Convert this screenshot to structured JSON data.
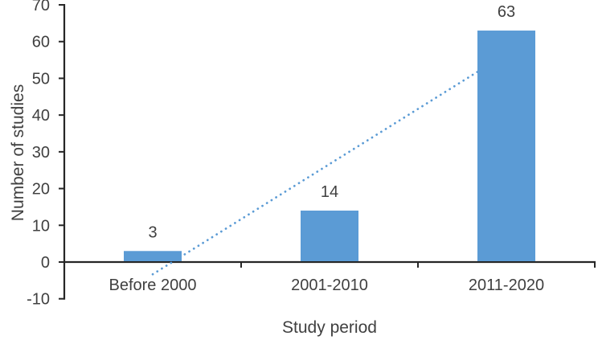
{
  "chart_data": {
    "type": "bar",
    "xlabel": "Study period",
    "ylabel": "Number of studies",
    "categories": [
      "Before 2000",
      "2001-2010",
      "2011-2020"
    ],
    "values": [
      3,
      14,
      63
    ],
    "data_labels": [
      "3",
      "14",
      "63"
    ],
    "ylim": [
      -10,
      70
    ],
    "yticks": [
      70,
      60,
      50,
      40,
      30,
      20,
      10,
      0,
      -10
    ],
    "grid": false,
    "legend": false,
    "bar_color": "#5B9BD5",
    "axis_color": "#262626",
    "text_color": "#404040",
    "trendline": {
      "style": "dotted",
      "color": "#5B9BD5",
      "start_category_index": 0,
      "start_value": -3.33,
      "end_category_index": 2,
      "end_value": 56.67
    }
  }
}
